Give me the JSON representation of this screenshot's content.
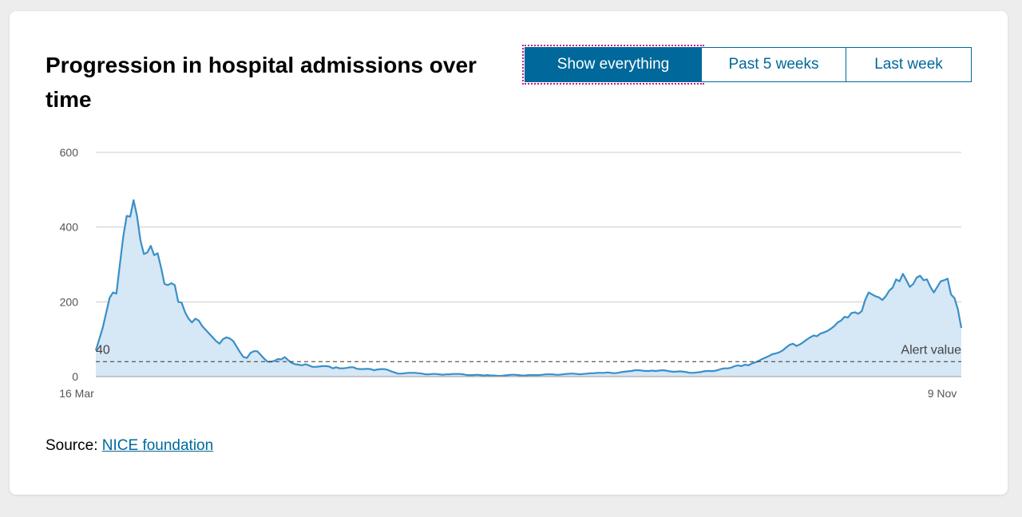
{
  "title": "Progression in hospital admissions over time",
  "buttons": [
    {
      "label": "Show everything",
      "active": true
    },
    {
      "label": "Past 5 weeks",
      "active": false
    },
    {
      "label": "Last week",
      "active": false
    }
  ],
  "source": {
    "prefix": "Source:",
    "link_text": "NICE foundation"
  },
  "colors": {
    "accent": "#01689b",
    "line": "#3a8fc8",
    "area": "#d6e7f5",
    "grid": "#cccccc"
  },
  "chart_data": {
    "type": "area",
    "x_tick_labels": [
      "16 Mar",
      "9 Nov"
    ],
    "y_ticks": [
      0,
      200,
      400,
      600
    ],
    "ylim": [
      0,
      600
    ],
    "grid": true,
    "alert": {
      "value": 40,
      "value_label": "40",
      "label": "Alert value"
    },
    "series": [
      {
        "values": [
          70,
          100,
          130,
          170,
          210,
          225,
          222,
          300,
          375,
          430,
          428,
          472,
          430,
          365,
          328,
          332,
          350,
          325,
          330,
          292,
          248,
          245,
          250,
          245,
          200,
          198,
          172,
          155,
          145,
          155,
          150,
          135,
          125,
          115,
          105,
          95,
          88,
          100,
          105,
          102,
          95,
          80,
          65,
          52,
          50,
          63,
          68,
          68,
          58,
          48,
          40,
          40,
          42,
          47,
          46,
          52,
          44,
          37,
          33,
          32,
          30,
          33,
          30,
          26,
          26,
          27,
          28,
          28,
          27,
          22,
          25,
          22,
          22,
          23,
          25,
          25,
          21,
          20,
          20,
          21,
          20,
          17,
          19,
          20,
          20,
          18,
          14,
          11,
          8,
          8,
          9,
          10,
          10,
          10,
          9,
          8,
          6,
          6,
          7,
          7,
          6,
          5,
          6,
          6,
          7,
          7,
          7,
          6,
          4,
          4,
          4,
          5,
          4,
          3,
          4,
          3,
          3,
          2,
          2,
          3,
          4,
          5,
          5,
          4,
          3,
          3,
          4,
          4,
          4,
          4,
          5,
          6,
          6,
          6,
          5,
          5,
          6,
          7,
          8,
          8,
          7,
          6,
          7,
          8,
          9,
          9,
          10,
          10,
          10,
          11,
          10,
          9,
          10,
          12,
          13,
          14,
          15,
          17,
          17,
          16,
          15,
          15,
          16,
          15,
          16,
          17,
          16,
          14,
          13,
          13,
          14,
          13,
          12,
          10,
          10,
          11,
          12,
          14,
          15,
          15,
          15,
          17,
          20,
          22,
          22,
          24,
          28,
          30,
          28,
          32,
          30,
          35,
          38,
          42,
          47,
          51,
          55,
          60,
          62,
          65,
          70,
          78,
          85,
          88,
          82,
          86,
          92,
          99,
          105,
          110,
          108,
          115,
          118,
          122,
          128,
          135,
          145,
          150,
          160,
          158,
          170,
          172,
          168,
          175,
          205,
          225,
          220,
          215,
          212,
          205,
          215,
          230,
          238,
          260,
          255,
          275,
          258,
          240,
          248,
          265,
          270,
          258,
          260,
          240,
          225,
          240,
          255,
          258,
          262,
          220,
          210,
          180,
          130
        ]
      }
    ]
  }
}
